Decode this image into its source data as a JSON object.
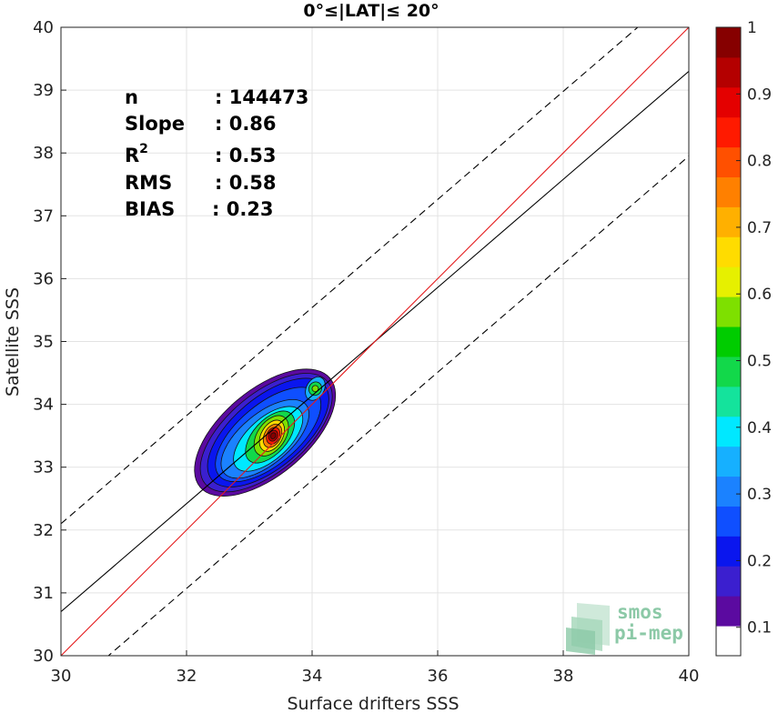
{
  "chart_data": {
    "type": "heatmap",
    "title": "0°≤|LAT|≤ 20°",
    "xlabel": "Surface drifters SSS",
    "ylabel": "Satellite SSS",
    "xlim": [
      30,
      40
    ],
    "ylim": [
      30,
      40
    ],
    "xticks": [
      "30",
      "32",
      "34",
      "36",
      "38",
      "40"
    ],
    "yticks": [
      "30",
      "31",
      "32",
      "33",
      "34",
      "35",
      "36",
      "37",
      "38",
      "39",
      "40"
    ],
    "grid": true,
    "stats": [
      {
        "key": "n",
        "value": ": 144473"
      },
      {
        "key": "Slope",
        "value": ": 0.86"
      },
      {
        "key": "R",
        "sup": "2",
        "value": ": 0.53"
      },
      {
        "key": "RMS",
        "value": ": 0.58"
      },
      {
        "key": "BIAS",
        "value": ": 0.23"
      }
    ],
    "lines": {
      "identity": {
        "slope": 1,
        "intercept": 0,
        "color": "#e41a1c"
      },
      "regression": {
        "slope": 0.86,
        "intercept": 4.9,
        "color": "#000000"
      },
      "upper_bound": {
        "slope": 0.86,
        "intercept": 6.3,
        "color": "#000000",
        "dash": true
      },
      "lower_bound": {
        "slope": 0.86,
        "intercept": 3.55,
        "color": "#000000",
        "dash": true
      }
    },
    "density_center": [
      33.35,
      33.5
    ],
    "density_peak": 1.0,
    "colorbar": {
      "range": [
        0,
        1
      ],
      "ticks": [
        "0.1",
        "0.2",
        "0.3",
        "0.4",
        "0.5",
        "0.6",
        "0.7",
        "0.8",
        "0.9",
        "1"
      ],
      "colors": [
        "#ffffff",
        "#5b0aa0",
        "#3b1fcf",
        "#0a16ee",
        "#0f4fff",
        "#1b82ff",
        "#16b0ff",
        "#00e8ff",
        "#14e39c",
        "#12d84a",
        "#00cc00",
        "#7ee000",
        "#e6f000",
        "#ffdc00",
        "#ffb000",
        "#ff8000",
        "#ff5000",
        "#ff1a00",
        "#e40000",
        "#b40000",
        "#860000"
      ]
    },
    "logo": {
      "line1": "smos",
      "line2": "pi-mep"
    }
  }
}
